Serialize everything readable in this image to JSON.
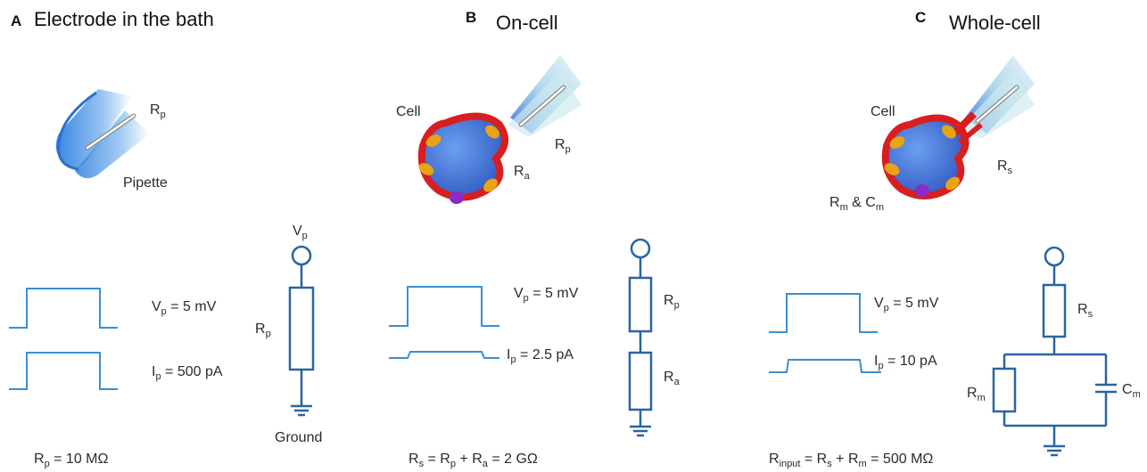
{
  "colors": {
    "circuit": "#2a64a2",
    "trace": "#3a8fd4",
    "membrane": "#d81e1e",
    "cell_body": "#3f6fd8",
    "channel": "#e8a316",
    "channel_purple": "#8a2bc4",
    "pipette": "#3c8be0"
  },
  "panels": [
    {
      "letter": "A",
      "title": "Electrode in the bath",
      "pipette_label": "Pipette",
      "rp_label": {
        "main": "R",
        "sub": "p"
      },
      "vp_trace": {
        "main": "V",
        "sub": "p",
        "rest": " = 5 mV"
      },
      "ip_trace": {
        "main": "I",
        "sub": "p",
        "rest": " = 500 pA"
      },
      "circuit": {
        "top": {
          "main": "V",
          "sub": "p"
        },
        "r1": {
          "main": "R",
          "sub": "p"
        },
        "bottom": "Ground"
      },
      "formula": {
        "parts": [
          {
            "main": "R",
            "sub": "p"
          },
          {
            "main": " = 10 MΩ"
          }
        ]
      },
      "current_level": 1.0
    },
    {
      "letter": "B",
      "title": "On-cell",
      "cell_label": "Cell",
      "rp_label": {
        "main": "R",
        "sub": "p"
      },
      "ra_label": {
        "main": "R",
        "sub": "a"
      },
      "vp_trace": {
        "main": "V",
        "sub": "p",
        "rest": " = 5 mV"
      },
      "ip_trace": {
        "main": "I",
        "sub": "p",
        "rest": " = 2.5 pA"
      },
      "circuit": {
        "r1": {
          "main": "R",
          "sub": "p"
        },
        "r2": {
          "main": "R",
          "sub": "a"
        }
      },
      "formula": {
        "parts": [
          {
            "main": "R",
            "sub": "s"
          },
          {
            "main": " =  R",
            "sub": "p"
          },
          {
            "main": " + R",
            "sub": "a"
          },
          {
            "main": " = 2 GΩ"
          }
        ]
      },
      "current_level": 0.1
    },
    {
      "letter": "C",
      "title": "Whole-cell",
      "cell_label": "Cell",
      "rs_label": {
        "main": "R",
        "sub": "s"
      },
      "rmcm_label": {
        "parts": [
          {
            "main": "R",
            "sub": "m"
          },
          {
            "main": " & C",
            "sub": "m"
          }
        ]
      },
      "vp_trace": {
        "main": "V",
        "sub": "p",
        "rest": " = 5 mV"
      },
      "ip_trace": {
        "main": "I",
        "sub": "p",
        "rest": " = 10 pA"
      },
      "circuit": {
        "r1": {
          "main": "R",
          "sub": "s"
        },
        "rm": {
          "main": "R",
          "sub": "m"
        },
        "cm": {
          "main": "C",
          "sub": "m"
        }
      },
      "formula": {
        "parts": [
          {
            "main": "R",
            "sub": "input"
          },
          {
            "main": " =  R",
            "sub": "s"
          },
          {
            "main": " + R",
            "sub": "m"
          },
          {
            "main": " = 500 MΩ"
          }
        ]
      },
      "current_level": 0.35
    }
  ]
}
